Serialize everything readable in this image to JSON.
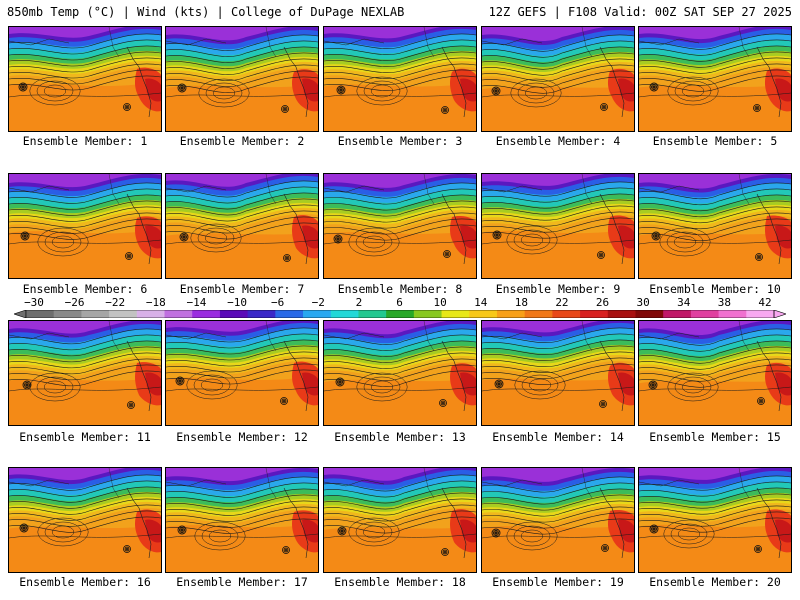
{
  "header": {
    "left": "850mb Temp (°C) | Wind (kts) | College of DuPage NEXLAB",
    "right": "12Z GEFS | F108 Valid: 00Z SAT SEP 27 2025"
  },
  "panels": [
    {
      "caption": "Ensemble Member: 1"
    },
    {
      "caption": "Ensemble Member: 2"
    },
    {
      "caption": "Ensemble Member: 3"
    },
    {
      "caption": "Ensemble Member: 4"
    },
    {
      "caption": "Ensemble Member: 5"
    },
    {
      "caption": "Ensemble Member: 6"
    },
    {
      "caption": "Ensemble Member: 7"
    },
    {
      "caption": "Ensemble Member: 8"
    },
    {
      "caption": "Ensemble Member: 9"
    },
    {
      "caption": "Ensemble Member: 10"
    },
    {
      "caption": "Ensemble Member: 11"
    },
    {
      "caption": "Ensemble Member: 12"
    },
    {
      "caption": "Ensemble Member: 13"
    },
    {
      "caption": "Ensemble Member: 14"
    },
    {
      "caption": "Ensemble Member: 15"
    },
    {
      "caption": "Ensemble Member: 16"
    },
    {
      "caption": "Ensemble Member: 17"
    },
    {
      "caption": "Ensemble Member: 18"
    },
    {
      "caption": "Ensemble Member: 19"
    },
    {
      "caption": "Ensemble Member: 20"
    }
  ],
  "colorbar": {
    "tick_labels": [
      "−30",
      "−26",
      "−22",
      "−18",
      "−14",
      "−10",
      "−6",
      "−2",
      "2",
      "6",
      "10",
      "14",
      "18",
      "22",
      "26",
      "30",
      "34",
      "38",
      "42"
    ],
    "colors": [
      "#6e6e6e",
      "#8a8a8a",
      "#a6a6a6",
      "#c2c2c2",
      "#d8b0e8",
      "#c070e0",
      "#9a2ce0",
      "#5a0ab8",
      "#3a28c8",
      "#2a6ae8",
      "#2aa8f0",
      "#22d8d8",
      "#22c890",
      "#28a828",
      "#88c820",
      "#e8e818",
      "#f8c818",
      "#f8a018",
      "#f07818",
      "#e84818",
      "#d82020",
      "#a81010",
      "#800808",
      "#c01868",
      "#e040a0",
      "#f070d0",
      "#f8a8f0"
    ]
  }
}
